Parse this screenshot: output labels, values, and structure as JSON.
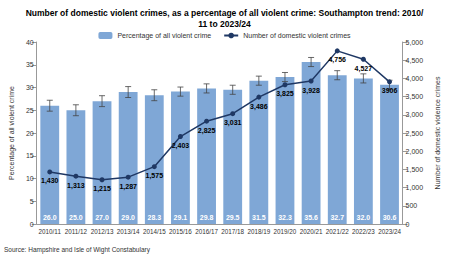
{
  "chart_data": {
    "type": "bar",
    "title": "Number of domestic violent crimes, as a percentage of all violent crime: Southampton trend: 2010/11 to 2023/24",
    "annotations": [
      "Source: Hampshire and Isle of Wight Constabulary"
    ],
    "y_label": "Percentage of all violent crime",
    "y2_label": "Number of domestic violence crimes",
    "categories": [
      "2010/11",
      "2011/12",
      "2012/13",
      "2013/14",
      "2014/15",
      "2015/16",
      "2016/17",
      "2017/18",
      "2018/19",
      "2019/20",
      "2020/21",
      "2021/22",
      "2022/23",
      "2023/24"
    ],
    "series": [
      {
        "name": "Percentage of all violent crime",
        "type": "bar",
        "color": "#7fa7d6",
        "values": [
          26.0,
          25.0,
          27.0,
          29.0,
          28.3,
          29.1,
          29.8,
          29.5,
          31.5,
          32.3,
          35.6,
          32.7,
          32.0,
          30.6
        ],
        "value_labels": [
          "26.0",
          "25.0",
          "27.0",
          "29.0",
          "28.3",
          "29.1",
          "29.8",
          "29.5",
          "31.5",
          "32.3",
          "35.6",
          "32.7",
          "32.0",
          "30.6"
        ],
        "errors": [
          1.2,
          1.2,
          1.2,
          1.2,
          1.2,
          1.0,
          1.0,
          1.0,
          1.0,
          1.0,
          1.0,
          1.0,
          1.0,
          1.0
        ]
      },
      {
        "name": "Number of domestic violent crimes",
        "type": "line",
        "axis": "y2",
        "color": "#1f3864",
        "marker": "circle",
        "values": [
          1430,
          1313,
          1215,
          1287,
          1575,
          2403,
          2825,
          3031,
          3486,
          3825,
          3928,
          4756,
          4527,
          3906
        ],
        "value_labels": [
          "1,430",
          "1,313",
          "1,215",
          "1,287",
          "1,575",
          "2,403",
          "2,825",
          "3,031",
          "3,486",
          "3,825",
          "3,928",
          "4,756",
          "4,527",
          "3906"
        ]
      }
    ],
    "ylim": [
      0,
      40
    ],
    "yticks": [
      0,
      5,
      10,
      15,
      20,
      25,
      30,
      35,
      40
    ],
    "y2lim": [
      0,
      5000
    ],
    "y2ticks": [
      0,
      500,
      {
        "value": 1000,
        "label": "1,000"
      },
      {
        "value": 1500,
        "label": "1,500"
      },
      {
        "value": 2000,
        "label": "2,000"
      },
      {
        "value": 2500,
        "label": "2,500"
      },
      {
        "value": 3000,
        "label": "3,000"
      },
      {
        "value": 3500,
        "label": "3,500"
      },
      {
        "value": 4000,
        "label": "4,000"
      },
      {
        "value": 4500,
        "label": "4,500"
      },
      {
        "value": 5000,
        "label": "5,000"
      }
    ],
    "legend": "top",
    "grid": false,
    "data_labels": true
  }
}
